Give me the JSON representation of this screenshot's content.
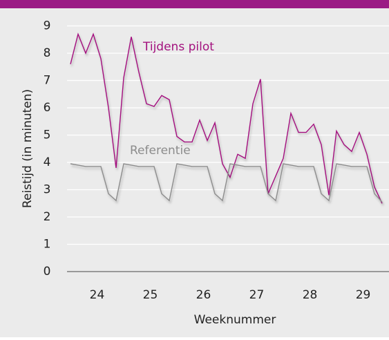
{
  "chart_data": {
    "type": "line",
    "xlabel": "Weeknummer",
    "ylabel": "Reistijd (in minuten)",
    "x": [
      23.5,
      23.643,
      23.786,
      23.929,
      24.071,
      24.214,
      24.357,
      24.5,
      24.643,
      24.786,
      24.929,
      25.071,
      25.214,
      25.357,
      25.5,
      25.643,
      25.786,
      25.929,
      26.071,
      26.214,
      26.357,
      26.5,
      26.643,
      26.786,
      26.929,
      27.071,
      27.214,
      27.357,
      27.5,
      27.643,
      27.786,
      27.929,
      28.071,
      28.214,
      28.357,
      28.5,
      28.643,
      28.786,
      28.929,
      29.071,
      29.214,
      29.357
    ],
    "series": [
      {
        "name": "Tijdens pilot",
        "color": "#a3117e",
        "values": [
          7.6,
          8.7,
          8.0,
          8.7,
          7.8,
          6.0,
          3.8,
          7.1,
          8.6,
          7.3,
          6.15,
          6.05,
          6.45,
          6.3,
          4.95,
          4.75,
          4.75,
          5.55,
          4.8,
          5.45,
          3.95,
          3.45,
          4.3,
          4.15,
          6.15,
          7.05,
          2.85,
          3.5,
          4.15,
          5.8,
          5.1,
          5.1,
          5.4,
          4.65,
          2.8,
          5.15,
          4.65,
          4.4,
          5.1,
          4.3,
          3.1,
          2.5
        ]
      },
      {
        "name": "Referentie",
        "color": "#8c8c8c",
        "values": [
          3.95,
          3.9,
          3.85,
          3.85,
          3.85,
          2.85,
          2.6,
          3.95,
          3.9,
          3.85,
          3.85,
          3.85,
          2.85,
          2.6,
          3.95,
          3.9,
          3.85,
          3.85,
          3.85,
          2.85,
          2.6,
          3.95,
          3.9,
          3.85,
          3.85,
          3.85,
          2.85,
          2.6,
          3.95,
          3.9,
          3.85,
          3.85,
          3.85,
          2.85,
          2.6,
          3.95,
          3.9,
          3.85,
          3.85,
          3.85,
          2.85,
          2.55
        ]
      }
    ],
    "xlim": [
      23.5,
      29.357
    ],
    "xticks": [
      24,
      25,
      26,
      27,
      28,
      29
    ],
    "ylim": [
      0,
      9
    ],
    "yticks": [
      0,
      1,
      2,
      3,
      4,
      5,
      6,
      7,
      8,
      9
    ],
    "grid": true
  }
}
